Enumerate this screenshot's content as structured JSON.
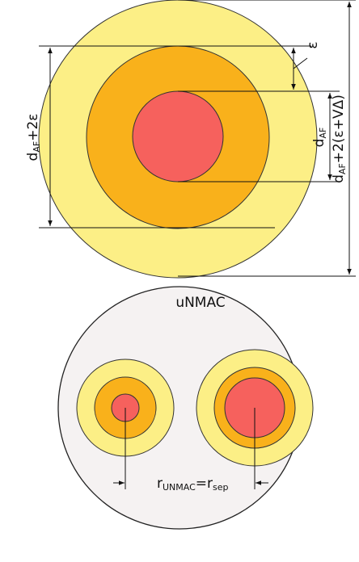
{
  "top": {
    "epsilon": "ε",
    "inner_label": {
      "main": "d",
      "sub": "AF",
      "rest": "+2ε"
    },
    "core_label": {
      "main": "d",
      "sub": "AF"
    },
    "outer_label": {
      "main": "d",
      "sub": "AF",
      "rest": "+2(ε+VΔ)"
    }
  },
  "bottom": {
    "title": "uNMAC",
    "radius_label": {
      "main": "r",
      "sub": "UNMAC",
      "eq": "=r",
      "sub2": "sep"
    }
  }
}
